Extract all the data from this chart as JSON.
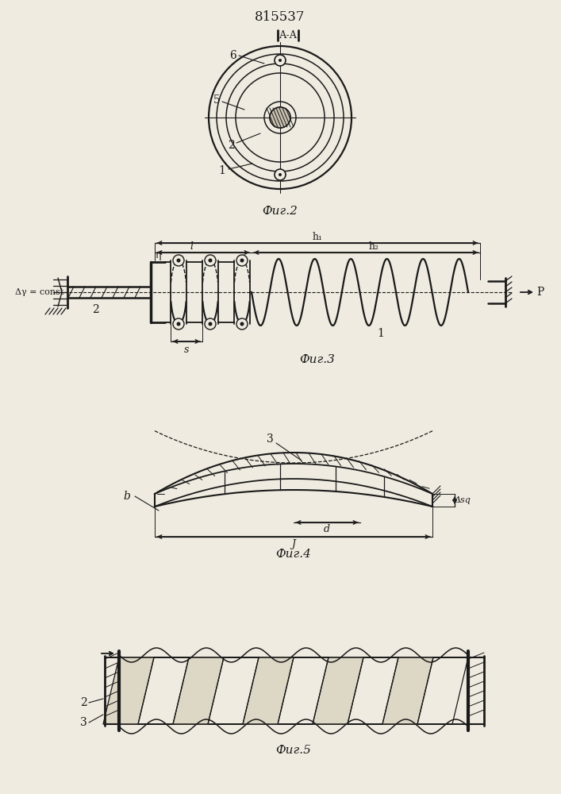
{
  "title": "815537",
  "fig2_label": "Фиг.2",
  "fig3_label": "Фиг.3",
  "fig4_label": "Фиг.4",
  "fig5_label": "Фиг.5",
  "bg_color": "#f0ebe0",
  "line_color": "#1a1a1a",
  "section_label": "А-А"
}
